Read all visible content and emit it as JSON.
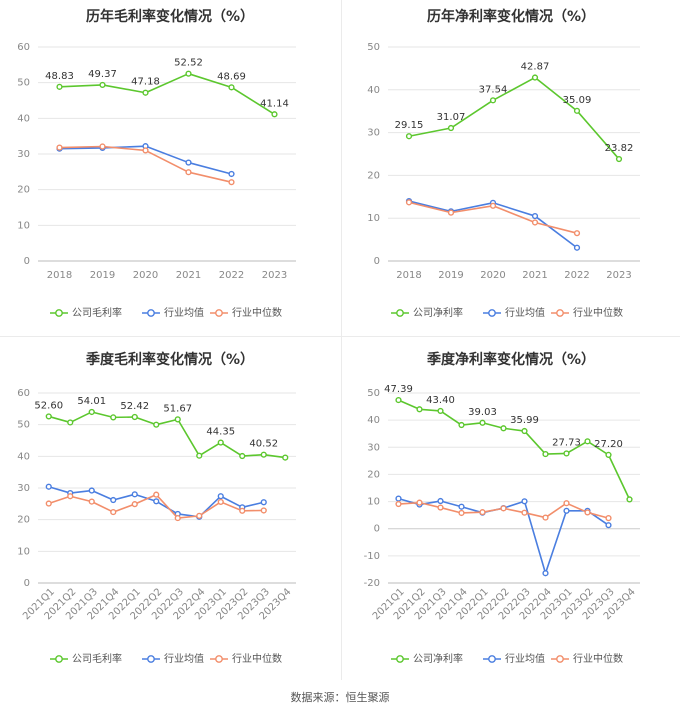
{
  "colors": {
    "company": "#5cc72e",
    "avg": "#4a7ee0",
    "median": "#f28e6b",
    "grid": "#e6e6e6",
    "axis": "#888888",
    "title": "#333333"
  },
  "source": "数据来源：恒生聚源",
  "chart_data": [
    {
      "type": "line",
      "title": "历年毛利率变化情况（%）",
      "categories": [
        "2018",
        "2019",
        "2020",
        "2021",
        "2022",
        "2023"
      ],
      "ylim": [
        0,
        60
      ],
      "yticks": [
        0,
        10,
        20,
        30,
        40,
        50,
        60
      ],
      "series": [
        {
          "name": "公司毛利率",
          "key": "company",
          "values": [
            48.83,
            49.37,
            47.18,
            52.52,
            48.69,
            41.14
          ],
          "labels": [
            "48.83",
            "49.37",
            "47.18",
            "52.52",
            "48.69",
            "41.14"
          ]
        },
        {
          "name": "行业均值",
          "key": "avg",
          "values": [
            31.5,
            31.7,
            32.2,
            27.6,
            24.4,
            null
          ]
        },
        {
          "name": "行业中位数",
          "key": "median",
          "values": [
            31.8,
            32.1,
            31.0,
            24.9,
            22.1,
            null
          ]
        }
      ]
    },
    {
      "type": "line",
      "title": "历年净利率变化情况（%）",
      "categories": [
        "2018",
        "2019",
        "2020",
        "2021",
        "2022",
        "2023"
      ],
      "ylim": [
        0,
        50
      ],
      "yticks": [
        0,
        10,
        20,
        30,
        40,
        50
      ],
      "series": [
        {
          "name": "公司净利率",
          "key": "company",
          "values": [
            29.15,
            31.07,
            37.54,
            42.87,
            35.09,
            23.82
          ],
          "labels": [
            "29.15",
            "31.07",
            "37.54",
            "42.87",
            "35.09",
            "23.82"
          ]
        },
        {
          "name": "行业均值",
          "key": "avg",
          "values": [
            14.0,
            11.6,
            13.6,
            10.5,
            3.1,
            null
          ]
        },
        {
          "name": "行业中位数",
          "key": "median",
          "values": [
            13.7,
            11.3,
            12.9,
            9.0,
            6.5,
            null
          ]
        }
      ]
    },
    {
      "type": "line",
      "title": "季度毛利率变化情况（%）",
      "categories": [
        "2021Q1",
        "2021Q2",
        "2021Q3",
        "2021Q4",
        "2022Q1",
        "2022Q2",
        "2022Q3",
        "2022Q4",
        "2023Q1",
        "2023Q2",
        "2023Q3",
        "2023Q4"
      ],
      "ylim": [
        0,
        60
      ],
      "yticks": [
        0,
        10,
        20,
        30,
        40,
        50,
        60
      ],
      "series": [
        {
          "name": "公司毛利率",
          "key": "company",
          "values": [
            52.6,
            50.7,
            54.01,
            52.3,
            52.42,
            50.0,
            51.67,
            40.2,
            44.35,
            40.1,
            40.52,
            39.6
          ],
          "labels": [
            "52.60",
            null,
            "54.01",
            null,
            "52.42",
            null,
            "51.67",
            null,
            "44.35",
            null,
            "40.52",
            null
          ]
        },
        {
          "name": "行业均值",
          "key": "avg",
          "values": [
            30.4,
            28.4,
            29.2,
            26.2,
            28.0,
            25.8,
            21.8,
            20.9,
            27.4,
            23.9,
            25.5,
            null
          ]
        },
        {
          "name": "行业中位数",
          "key": "median",
          "values": [
            25.1,
            27.4,
            25.7,
            22.4,
            24.9,
            27.9,
            20.5,
            21.2,
            25.6,
            22.8,
            22.9,
            null
          ]
        }
      ]
    },
    {
      "type": "line",
      "title": "季度净利率变化情况（%）",
      "categories": [
        "2021Q1",
        "2021Q2",
        "2021Q3",
        "2021Q4",
        "2022Q1",
        "2022Q2",
        "2022Q3",
        "2022Q4",
        "2023Q1",
        "2023Q2",
        "2023Q3",
        "2023Q4"
      ],
      "ylim": [
        -20,
        50
      ],
      "yticks": [
        -20,
        -10,
        0,
        10,
        20,
        30,
        40,
        50
      ],
      "series": [
        {
          "name": "公司净利率",
          "key": "company",
          "values": [
            47.39,
            44.0,
            43.4,
            38.2,
            39.03,
            37.0,
            35.99,
            27.5,
            27.73,
            32.2,
            27.2,
            10.8
          ],
          "labels": [
            "47.39",
            null,
            "43.40",
            null,
            "39.03",
            null,
            "35.99",
            null,
            "27.73",
            null,
            "27.20",
            null
          ]
        },
        {
          "name": "行业均值",
          "key": "avg",
          "values": [
            11.1,
            8.9,
            10.2,
            8.1,
            5.9,
            7.6,
            10.1,
            -16.4,
            6.6,
            6.6,
            1.3,
            null
          ]
        },
        {
          "name": "行业中位数",
          "key": "median",
          "values": [
            9.1,
            9.6,
            7.8,
            5.8,
            6.1,
            7.5,
            5.9,
            4.1,
            9.4,
            6.0,
            3.9,
            null
          ]
        }
      ]
    }
  ]
}
